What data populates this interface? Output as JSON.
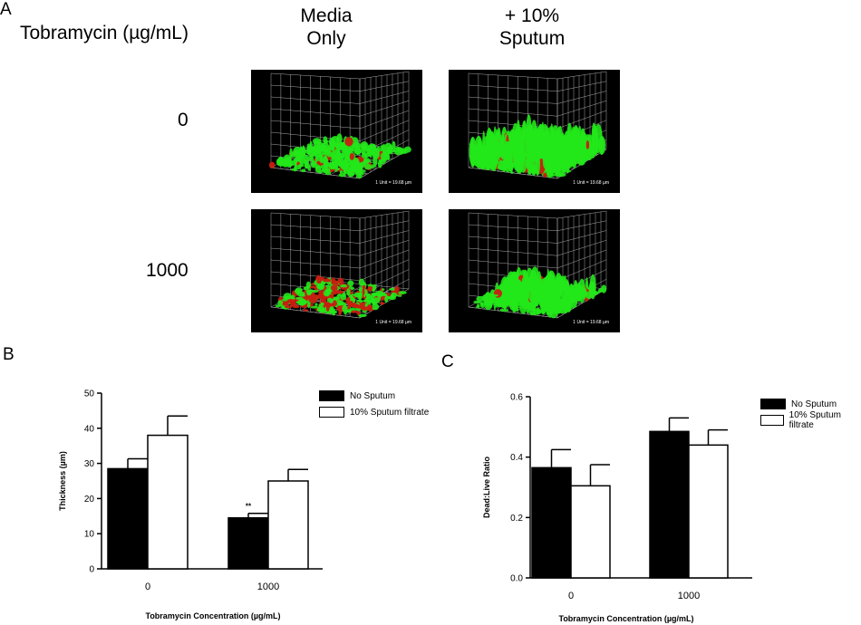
{
  "panel_a": {
    "letter": "A",
    "row_header": "Tobramycin (µg/mL)",
    "col_headers": [
      "Media\nOnly",
      "+ 10%\nSputum"
    ],
    "row_labels": [
      "0",
      "1000"
    ],
    "tile_caption": "1 Unit = 19.68 µm",
    "colors": {
      "live": "#22e81a",
      "dead": "#c81e10",
      "grid": "#bdbdbd"
    }
  },
  "panel_b": {
    "letter": "B"
  },
  "panel_c": {
    "letter": "C"
  },
  "chart_data": [
    {
      "type": "bar",
      "categories": [
        "0",
        "1000"
      ],
      "series": [
        {
          "name": "No Sputum",
          "values": [
            28.5,
            14.5
          ],
          "errors": [
            2.8,
            1.3
          ],
          "fill": "#000000"
        },
        {
          "name": "10% Sputum filtrate",
          "values": [
            38,
            25
          ],
          "errors": [
            5.5,
            3.3
          ],
          "fill": "#ffffff"
        }
      ],
      "annotations": [
        {
          "text": "**",
          "category": "1000",
          "series": "No Sputum"
        }
      ],
      "ylabel": "Thickness (µm)",
      "xlabel": "Tobramycin Concentration (µg/mL)",
      "ylim": [
        0,
        50
      ],
      "yticks": [
        0,
        10,
        20,
        30,
        40,
        50
      ],
      "legend": "top-right"
    },
    {
      "type": "bar",
      "categories": [
        "0",
        "1000"
      ],
      "series": [
        {
          "name": "No Sputum",
          "values": [
            0.365,
            0.485
          ],
          "errors": [
            0.06,
            0.045
          ],
          "fill": "#000000"
        },
        {
          "name": "10% Sputum filtrate",
          "values": [
            0.305,
            0.44
          ],
          "errors": [
            0.07,
            0.05
          ],
          "fill": "#ffffff"
        }
      ],
      "ylabel": "Dead:Live Ratio",
      "xlabel": "Tobramycin Concentration (µg/mL)",
      "ylim": [
        0,
        0.6
      ],
      "yticks": [
        "0.0",
        "0.2",
        "0.4",
        "0.6"
      ],
      "legend": "top-right"
    }
  ]
}
